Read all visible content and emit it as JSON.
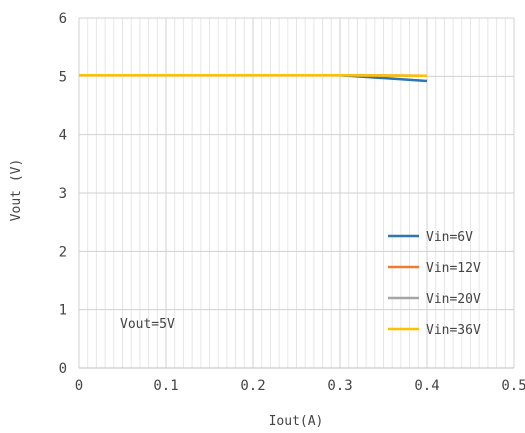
{
  "chart_data": {
    "type": "line",
    "title": "",
    "xlabel": "Iout(A)",
    "ylabel": "Vout (V)",
    "xlim": [
      0,
      0.5
    ],
    "ylim": [
      0,
      6
    ],
    "xticks": [
      "0",
      "0.1",
      "0.2",
      "0.3",
      "0.4",
      "0.5"
    ],
    "yticks": [
      "0",
      "1",
      "2",
      "3",
      "4",
      "5",
      "6"
    ],
    "grid": true,
    "legend_position": "bottom-right",
    "annotation": "Vout=5V",
    "series": [
      {
        "name": "Vin=6V",
        "color": "#2e75b6",
        "x": [
          0,
          0.1,
          0.2,
          0.3,
          0.4
        ],
        "y": [
          5.02,
          5.02,
          5.02,
          5.02,
          4.92
        ]
      },
      {
        "name": "Vin=12V",
        "color": "#ed7d31",
        "x": [
          0,
          0.1,
          0.2,
          0.3,
          0.4
        ],
        "y": [
          5.02,
          5.02,
          5.02,
          5.02,
          5.01
        ]
      },
      {
        "name": "Vin=20V",
        "color": "#a5a5a5",
        "x": [
          0,
          0.1,
          0.2,
          0.3,
          0.4
        ],
        "y": [
          5.02,
          5.02,
          5.02,
          5.02,
          5.01
        ]
      },
      {
        "name": "Vin=36V",
        "color": "#ffc000",
        "x": [
          0,
          0.1,
          0.2,
          0.3,
          0.4
        ],
        "y": [
          5.02,
          5.02,
          5.02,
          5.02,
          5.01
        ]
      }
    ]
  }
}
